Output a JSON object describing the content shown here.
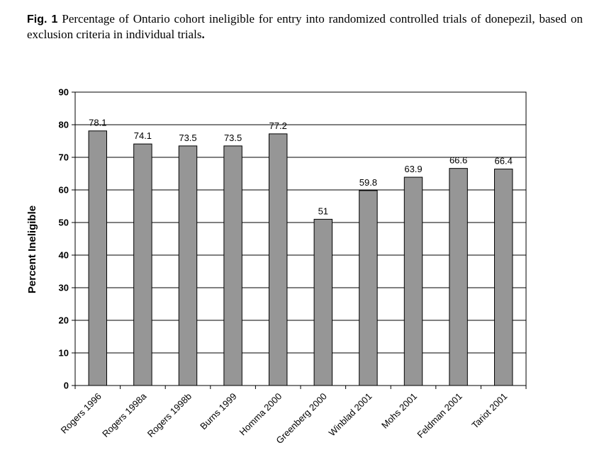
{
  "caption": {
    "fig_label": "Fig. 1",
    "text": "Percentage of Ontario cohort ineligible for entry into randomized controlled trials of donepezil, based on exclusion criteria in individual trials",
    "end": "."
  },
  "chart_data": {
    "type": "bar",
    "categories": [
      "Rogers 1996",
      "Rogers 1998a",
      "Rogers 1998b",
      "Burns 1999",
      "Homma 2000",
      "Greenberg 2000",
      "Winblad 2001",
      "Mohs 2001",
      "Feldman 2001",
      "Tariot 2001"
    ],
    "values": [
      78.1,
      74.1,
      73.5,
      73.5,
      77.2,
      51,
      59.8,
      63.9,
      66.6,
      66.4
    ],
    "value_labels": [
      "78.1",
      "74.1",
      "73.5",
      "73.5",
      "77.2",
      "51",
      "59.8",
      "63.9",
      "66.6",
      "66.4"
    ],
    "xlabel": "",
    "ylabel": "Percent Ineligible",
    "ylim": [
      0,
      90
    ],
    "yticks": [
      "0",
      "10",
      "20",
      "30",
      "40",
      "50",
      "60",
      "70",
      "80",
      "90"
    ],
    "grid": true,
    "bar_color": "#969696"
  }
}
